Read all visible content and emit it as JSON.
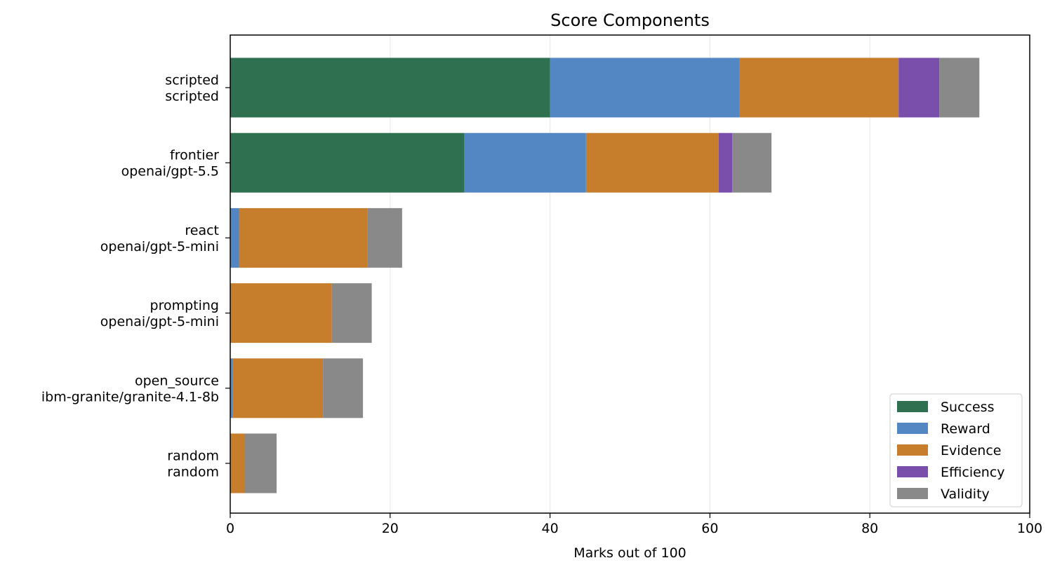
{
  "chart_data": {
    "type": "bar",
    "orientation": "horizontal",
    "stacked": true,
    "title": "Score Components",
    "xlabel": "Marks out of 100",
    "ylabel": "",
    "xlim": [
      0,
      100
    ],
    "xticks": [
      0,
      20,
      40,
      60,
      80,
      100
    ],
    "grid": "vertical",
    "legend_position": "lower-right",
    "categories": [
      [
        "scripted",
        "scripted"
      ],
      [
        "frontier",
        "openai/gpt-5.5"
      ],
      [
        "react",
        "openai/gpt-5-mini"
      ],
      [
        "prompting",
        "openai/gpt-5-mini"
      ],
      [
        "open_source",
        "ibm-granite/granite-4.1-8b"
      ],
      [
        "random",
        "random"
      ]
    ],
    "series": [
      {
        "name": "Success",
        "color": "#2e7050",
        "values": [
          40.0,
          29.3,
          0.0,
          0.0,
          0.0,
          0.0
        ]
      },
      {
        "name": "Reward",
        "color": "#5287c3",
        "values": [
          23.7,
          15.2,
          1.1,
          0.0,
          0.3,
          0.0
        ]
      },
      {
        "name": "Evidence",
        "color": "#c77e2c",
        "values": [
          19.9,
          16.6,
          16.1,
          12.7,
          11.3,
          1.8
        ]
      },
      {
        "name": "Efficiency",
        "color": "#7a4fac",
        "values": [
          5.1,
          1.7,
          0.0,
          0.0,
          0.0,
          0.0
        ]
      },
      {
        "name": "Validity",
        "color": "#898989",
        "values": [
          5.0,
          4.9,
          4.3,
          5.0,
          5.0,
          4.0
        ]
      }
    ]
  }
}
